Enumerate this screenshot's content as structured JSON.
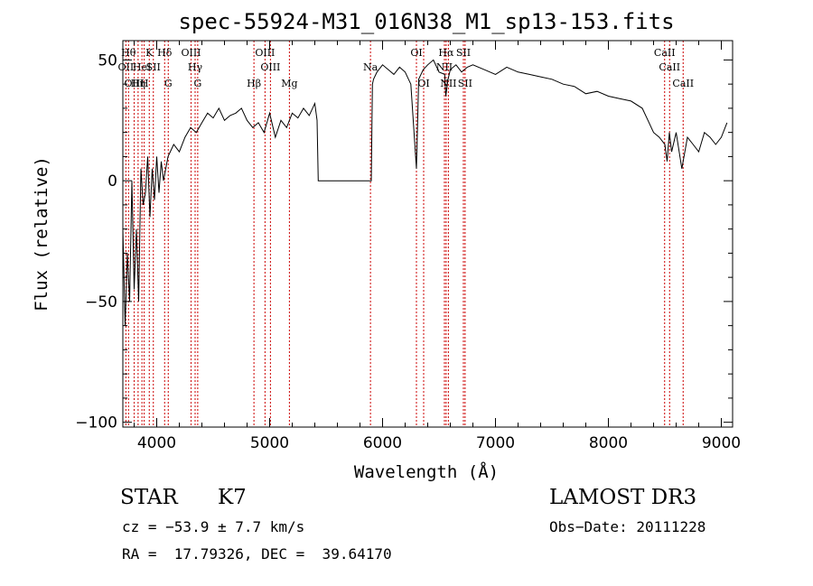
{
  "chart_data": {
    "type": "line",
    "title": "spec-55924-M31_016N38_M1_sp13-153.fits",
    "xlabel": "Wavelength (Å)",
    "ylabel": "Flux (relative)",
    "xlim": [
      3700,
      9100
    ],
    "ylim": [
      -102,
      58
    ],
    "xticks": [
      4000,
      5000,
      6000,
      7000,
      8000,
      9000
    ],
    "xtick_labels": [
      "4000",
      "5000",
      "6000",
      "7000",
      "8000",
      "9000"
    ],
    "yticks": [
      -100,
      -50,
      0,
      50
    ],
    "ytick_labels": [
      "−100",
      "−50",
      "0",
      "50"
    ],
    "grid": false,
    "line_color": "#000000",
    "marker_color": "#cc0000",
    "series": [
      {
        "x": [
          3700,
          3720,
          3740,
          3760,
          3780,
          3800,
          3820,
          3840,
          3860,
          3880,
          3900,
          3920,
          3940,
          3960,
          3980,
          4000,
          4020,
          4040,
          4060,
          4080,
          4100,
          4150,
          4200,
          4250,
          4300,
          4350,
          4400,
          4450,
          4500,
          4550,
          4600,
          4650,
          4700,
          4750,
          4800,
          4850,
          4900,
          4950,
          5000,
          5050,
          5100,
          5150,
          5200,
          5250,
          5300,
          5350,
          5400,
          5420,
          5430,
          5440,
          5600,
          5800,
          5900,
          5910,
          5920,
          5950,
          6000,
          6050,
          6100,
          6150,
          6200,
          6250,
          6300,
          6320,
          6340,
          6360,
          6400,
          6450,
          6500,
          6550,
          6560,
          6580,
          6600,
          6650,
          6700,
          6750,
          6800,
          6900,
          7000,
          7100,
          7200,
          7300,
          7400,
          7500,
          7600,
          7700,
          7800,
          7900,
          8000,
          8100,
          8200,
          8300,
          8350,
          8400,
          8450,
          8500,
          8520,
          8540,
          8560,
          8600,
          8650,
          8700,
          8750,
          8800,
          8850,
          8900,
          8950,
          9000,
          9050
        ],
        "y": [
          -20,
          -60,
          -30,
          -50,
          0,
          -45,
          -20,
          -50,
          5,
          -10,
          -5,
          10,
          -15,
          5,
          -8,
          10,
          -5,
          8,
          0,
          5,
          10,
          15,
          12,
          18,
          22,
          20,
          24,
          28,
          26,
          30,
          25,
          27,
          28,
          30,
          25,
          22,
          24,
          20,
          28,
          18,
          25,
          22,
          28,
          26,
          30,
          27,
          32,
          25,
          0,
          0,
          0,
          0,
          0,
          40,
          42,
          45,
          48,
          46,
          44,
          47,
          45,
          40,
          5,
          42,
          44,
          46,
          48,
          50,
          45,
          44,
          35,
          42,
          46,
          48,
          45,
          47,
          48,
          46,
          44,
          47,
          45,
          44,
          43,
          42,
          40,
          39,
          36,
          37,
          35,
          34,
          33,
          30,
          25,
          20,
          18,
          15,
          8,
          20,
          12,
          20,
          5,
          18,
          15,
          12,
          20,
          18,
          15,
          18,
          24
        ]
      }
    ],
    "lines": [
      {
        "x": 3727,
        "label": "OII",
        "row": 2
      },
      {
        "x": 3750,
        "label": "Hθ",
        "row": 1
      },
      {
        "x": 3800,
        "label": "OIII",
        "row": 3
      },
      {
        "x": 3835,
        "label": "Hη",
        "row": 3
      },
      {
        "x": 3869,
        "label": "HeI",
        "row": 2
      },
      {
        "x": 3889,
        "label": "H",
        "row": 3
      },
      {
        "x": 3934,
        "label": "K",
        "row": 1
      },
      {
        "x": 3970,
        "label": "SII",
        "row": 2
      },
      {
        "x": 4070,
        "label": "Hδ",
        "row": 1
      },
      {
        "x": 4102,
        "label": "G",
        "row": 3
      },
      {
        "x": 4304,
        "label": "OIII",
        "row": 1
      },
      {
        "x": 4340,
        "label": "Hγ",
        "row": 2
      },
      {
        "x": 4363,
        "label": "G",
        "row": 3
      },
      {
        "x": 4861,
        "label": "Hβ",
        "row": 3
      },
      {
        "x": 4959,
        "label": "OIII",
        "row": 1
      },
      {
        "x": 5007,
        "label": "OIII",
        "row": 2
      },
      {
        "x": 5175,
        "label": "Mg",
        "row": 3
      },
      {
        "x": 5893,
        "label": "Na",
        "row": 2
      },
      {
        "x": 6300,
        "label": "OI",
        "row": 1
      },
      {
        "x": 6364,
        "label": "OI",
        "row": 3
      },
      {
        "x": 6548,
        "label": "NII",
        "row": 2
      },
      {
        "x": 6563,
        "label": "Hα",
        "row": 1
      },
      {
        "x": 6583,
        "label": "NII",
        "row": 3
      },
      {
        "x": 6716,
        "label": "SII",
        "row": 1
      },
      {
        "x": 6731,
        "label": "SII",
        "row": 3
      },
      {
        "x": 8498,
        "label": "CaII",
        "row": 1
      },
      {
        "x": 8542,
        "label": "CaII",
        "row": 2
      },
      {
        "x": 8662,
        "label": "CaII",
        "row": 3
      }
    ]
  },
  "info": {
    "class": "STAR",
    "subclass": "K7",
    "survey": "LAMOST DR3",
    "cz": "cz = −53.9 ± 7.7 km/s",
    "obs_date": "Obs−Date: 20111228",
    "coords": "RA =  17.79326, DEC =  39.64170"
  }
}
